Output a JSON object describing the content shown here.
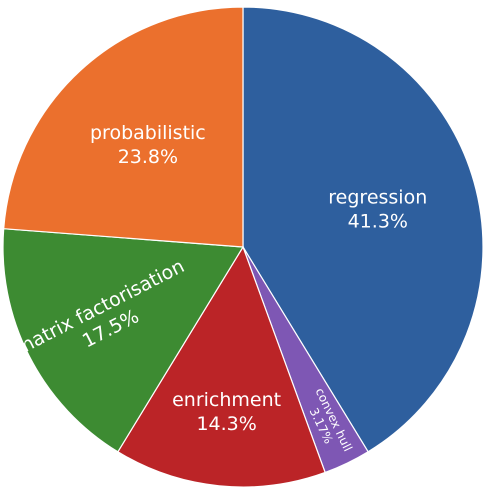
{
  "chart_data": {
    "type": "pie",
    "title": "",
    "start_angle_deg": 0,
    "direction": "clockwise",
    "slices": [
      {
        "label": "regression",
        "value": 41.3,
        "value_text": "41.3%",
        "color": "#2e5f9e",
        "label_style": "horizontal"
      },
      {
        "label": "convex hull",
        "value": 3.17,
        "value_text": "3.17%",
        "color": "#7e57b4",
        "label_style": "radial"
      },
      {
        "label": "enrichment",
        "value": 14.3,
        "value_text": "14.3%",
        "color": "#bb2427",
        "label_style": "horizontal"
      },
      {
        "label": "matrix factorisation",
        "value": 17.5,
        "value_text": "17.5%",
        "color": "#3d8b32",
        "label_style": "radial"
      },
      {
        "label": "probabilistic",
        "value": 23.8,
        "value_text": "23.8%",
        "color": "#eb702d",
        "label_style": "horizontal"
      }
    ]
  }
}
